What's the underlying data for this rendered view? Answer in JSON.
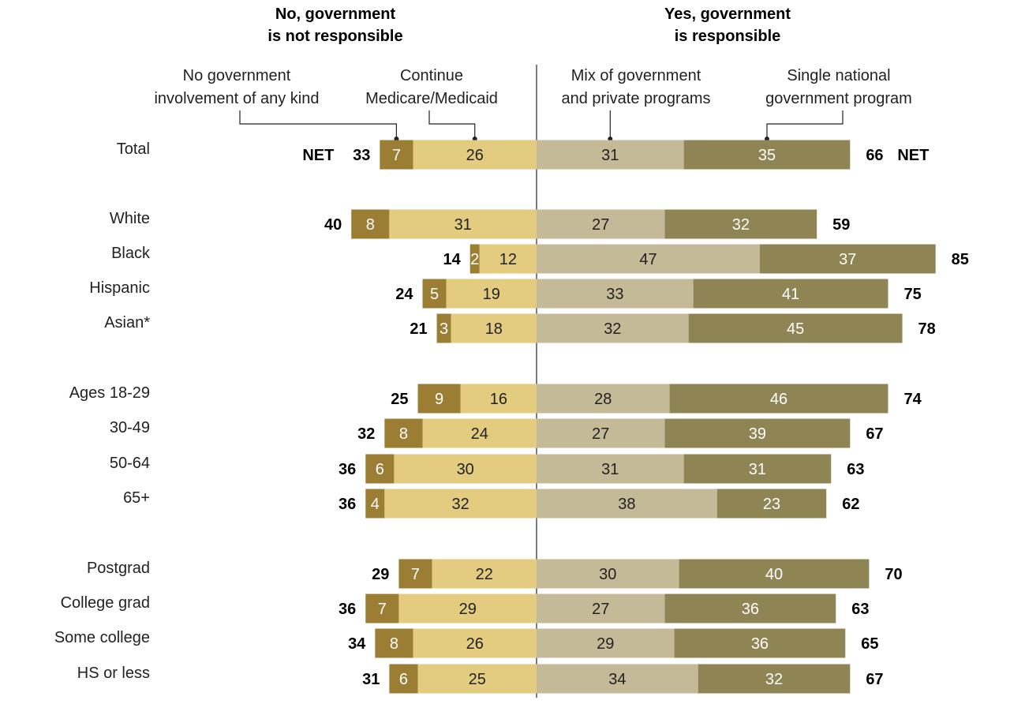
{
  "chart_data": {
    "type": "bar",
    "orientation": "horizontal-diverging",
    "headers": {
      "left": [
        "No, government",
        "is not responsible"
      ],
      "right": [
        "Yes, government",
        "is responsible"
      ]
    },
    "series": [
      {
        "name": "No government involvement of any kind",
        "legend_lines": [
          "No government",
          "involvement of any kind"
        ],
        "side": "left",
        "color": "#9b7d33",
        "label_color": "#ffffff"
      },
      {
        "name": "Continue Medicare/Medicaid",
        "legend_lines": [
          "Continue",
          "Medicare/Medicaid"
        ],
        "side": "left",
        "color": "#e3cb80",
        "label_color": "#222222"
      },
      {
        "name": "Mix of government and private programs",
        "legend_lines": [
          "Mix of government",
          "and private programs"
        ],
        "side": "right",
        "color": "#c5ba98",
        "label_color": "#222222"
      },
      {
        "name": "Single national government program",
        "legend_lines": [
          "Single national",
          "government program"
        ],
        "side": "right",
        "color": "#8f8453",
        "label_color": "#ffffff"
      }
    ],
    "net_label": "NET",
    "rows": [
      {
        "label": "Total",
        "values": [
          7,
          26,
          31,
          35
        ],
        "net_left": 33,
        "net_right": 66,
        "show_net_word": true
      },
      {
        "label": "White",
        "values": [
          8,
          31,
          27,
          32
        ],
        "net_left": 40,
        "net_right": 59
      },
      {
        "label": "Black",
        "values": [
          2,
          12,
          47,
          37
        ],
        "net_left": 14,
        "net_right": 85
      },
      {
        "label": "Hispanic",
        "values": [
          5,
          19,
          33,
          41
        ],
        "net_left": 24,
        "net_right": 75
      },
      {
        "label": "Asian*",
        "values": [
          3,
          18,
          32,
          45
        ],
        "net_left": 21,
        "net_right": 78
      },
      {
        "label": "Ages 18-29",
        "values": [
          9,
          16,
          28,
          46
        ],
        "net_left": 25,
        "net_right": 74
      },
      {
        "label": "30-49",
        "values": [
          8,
          24,
          27,
          39
        ],
        "net_left": 32,
        "net_right": 67
      },
      {
        "label": "50-64",
        "values": [
          6,
          30,
          31,
          31
        ],
        "net_left": 36,
        "net_right": 63
      },
      {
        "label": "65+",
        "values": [
          4,
          32,
          38,
          23
        ],
        "net_left": 36,
        "net_right": 62
      },
      {
        "label": "Postgrad",
        "values": [
          7,
          22,
          30,
          40
        ],
        "net_left": 29,
        "net_right": 70
      },
      {
        "label": "College grad",
        "values": [
          7,
          29,
          27,
          36
        ],
        "net_left": 36,
        "net_right": 63
      },
      {
        "label": "Some college",
        "values": [
          8,
          26,
          29,
          36
        ],
        "net_left": 34,
        "net_right": 65
      },
      {
        "label": "HS or less",
        "values": [
          6,
          25,
          34,
          32
        ],
        "net_left": 31,
        "net_right": 67
      }
    ]
  }
}
